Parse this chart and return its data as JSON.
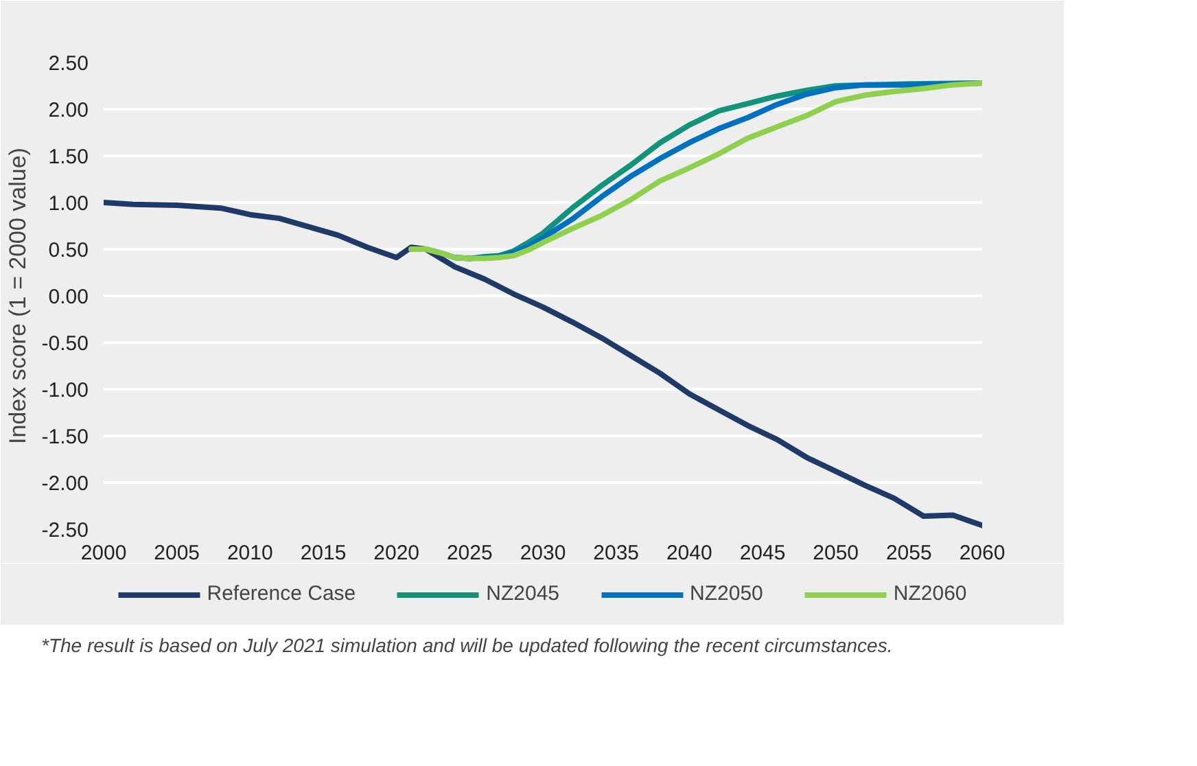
{
  "chart_data": {
    "type": "line",
    "ylabel": "Index score (1 = 2000 value)",
    "xlim": [
      2000,
      2060
    ],
    "xticks": [
      2000,
      2005,
      2010,
      2015,
      2020,
      2025,
      2030,
      2035,
      2040,
      2045,
      2050,
      2055,
      2060
    ],
    "ylim": [
      -2.5,
      2.5
    ],
    "yticks": [
      {
        "value": -2.5,
        "label": "-2.50"
      },
      {
        "value": -2,
        "label": "-2.00"
      },
      {
        "value": -1.5,
        "label": "-1.50"
      },
      {
        "value": -1,
        "label": "-1.00"
      },
      {
        "value": -0.5,
        "label": "-0.50"
      },
      {
        "value": 0,
        "label": "0.00"
      },
      {
        "value": 0.5,
        "label": "0.50"
      },
      {
        "value": 1,
        "label": "1.00"
      },
      {
        "value": 1.5,
        "label": "1.50"
      },
      {
        "value": 2,
        "label": "2.00"
      },
      {
        "value": 2.5,
        "label": "2.50"
      }
    ],
    "grid": "y",
    "legend": "bottom",
    "line_style": "solid",
    "marker": "none",
    "series": [
      {
        "name": "Reference Case",
        "color": "#1f3a68",
        "x": [
          2000,
          2002,
          2005,
          2008,
          2010,
          2012,
          2014,
          2016,
          2018,
          2020,
          2021,
          2022,
          2024,
          2026,
          2028,
          2030,
          2032,
          2034,
          2036,
          2038,
          2040,
          2042,
          2044,
          2046,
          2048,
          2050,
          2052,
          2054,
          2056,
          2058,
          2060
        ],
        "values": [
          1.0,
          0.98,
          0.97,
          0.94,
          0.87,
          0.83,
          0.74,
          0.65,
          0.52,
          0.41,
          0.52,
          0.5,
          0.31,
          0.18,
          0.02,
          -0.12,
          -0.28,
          -0.45,
          -0.64,
          -0.83,
          -1.05,
          -1.22,
          -1.39,
          -1.54,
          -1.73,
          -1.88,
          -2.03,
          -2.17,
          -2.36,
          -2.35,
          -2.46
        ]
      },
      {
        "name": "NZ2045",
        "color": "#12937a",
        "x": [
          2021,
          2022,
          2023,
          2024,
          2025,
          2026,
          2027,
          2028,
          2029,
          2030,
          2032,
          2034,
          2036,
          2038,
          2040,
          2042,
          2044,
          2046,
          2048,
          2050,
          2055,
          2060
        ],
        "values": [
          0.5,
          0.5,
          0.46,
          0.41,
          0.4,
          0.42,
          0.43,
          0.48,
          0.57,
          0.67,
          0.94,
          1.18,
          1.4,
          1.64,
          1.83,
          1.98,
          2.06,
          2.14,
          2.2,
          2.25,
          2.27,
          2.28
        ]
      },
      {
        "name": "NZ2050",
        "color": "#0070c0",
        "x": [
          2024,
          2025,
          2026,
          2027,
          2028,
          2029,
          2030,
          2032,
          2034,
          2036,
          2038,
          2040,
          2042,
          2044,
          2046,
          2048,
          2050,
          2052,
          2055,
          2060
        ],
        "values": [
          0.41,
          0.4,
          0.41,
          0.42,
          0.46,
          0.53,
          0.62,
          0.82,
          1.06,
          1.28,
          1.47,
          1.64,
          1.79,
          1.91,
          2.05,
          2.16,
          2.23,
          2.26,
          2.26,
          2.28
        ]
      },
      {
        "name": "NZ2060",
        "color": "#8fd14f",
        "x": [
          2021,
          2022,
          2023,
          2024,
          2025,
          2026,
          2027,
          2028,
          2029,
          2030,
          2032,
          2034,
          2036,
          2038,
          2040,
          2042,
          2044,
          2046,
          2048,
          2050,
          2052,
          2054,
          2056,
          2058,
          2060
        ],
        "values": [
          0.5,
          0.5,
          0.46,
          0.41,
          0.4,
          0.4,
          0.41,
          0.43,
          0.49,
          0.57,
          0.72,
          0.86,
          1.03,
          1.23,
          1.37,
          1.52,
          1.69,
          1.81,
          1.93,
          2.08,
          2.15,
          2.19,
          2.22,
          2.26,
          2.28
        ]
      }
    ],
    "annotations": [
      "*The result is based on July 2021 simulation and will be updated following the recent circumstances."
    ]
  }
}
